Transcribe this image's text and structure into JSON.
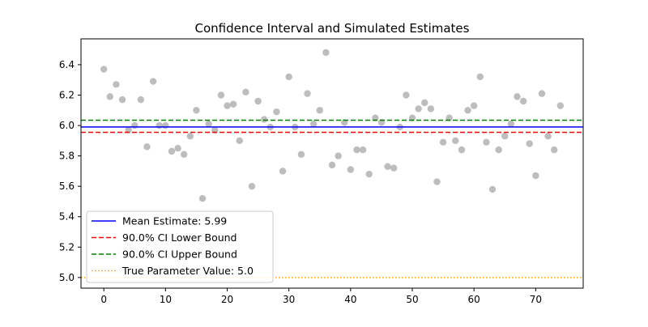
{
  "chart_data": {
    "type": "scatter",
    "title": "Confidence Interval and Simulated Estimates",
    "xlabel": "",
    "ylabel": "",
    "xlim": [
      -3.7,
      77.7
    ],
    "ylim": [
      4.93,
      6.57
    ],
    "xticks": [
      0,
      10,
      20,
      30,
      40,
      50,
      60,
      70
    ],
    "yticks": [
      5.0,
      5.2,
      5.4,
      5.6,
      5.8,
      6.0,
      6.2,
      6.4
    ],
    "ytick_labels": [
      "5.0",
      "5.2",
      "5.4",
      "5.6",
      "5.8",
      "6.0",
      "6.2",
      "6.4"
    ],
    "grid": false,
    "legend_position": "lower-left",
    "colors": {
      "points": "#999999",
      "mean": "#0000ff",
      "ci_lower": "#ff0000",
      "ci_upper": "#008000",
      "true_value": "#ffa500"
    },
    "series": [
      {
        "kind": "points",
        "x": [
          0,
          1,
          2,
          3,
          4,
          5,
          6,
          7,
          8,
          9,
          10,
          11,
          12,
          13,
          14,
          15,
          16,
          17,
          18,
          19,
          20,
          21,
          22,
          23,
          24,
          25,
          26,
          27,
          28,
          29,
          30,
          31,
          32,
          33,
          34,
          35,
          36,
          37,
          38,
          39,
          40,
          41,
          42,
          43,
          44,
          45,
          46,
          47,
          48,
          49,
          50,
          51,
          52,
          53,
          54,
          55,
          56,
          57,
          58,
          59,
          60,
          61,
          62,
          63,
          64,
          65,
          66,
          67,
          68,
          69,
          70,
          71,
          72,
          73,
          74
        ],
        "y": [
          6.37,
          6.19,
          6.27,
          6.17,
          5.97,
          6.0,
          6.17,
          5.86,
          6.29,
          6.0,
          6.0,
          5.83,
          5.85,
          5.81,
          5.93,
          6.1,
          5.52,
          6.01,
          5.97,
          6.2,
          6.13,
          6.14,
          5.9,
          6.22,
          5.6,
          6.16,
          6.04,
          5.99,
          6.09,
          5.7,
          6.32,
          5.99,
          5.81,
          6.21,
          6.01,
          6.1,
          6.48,
          5.74,
          5.8,
          6.02,
          5.71,
          5.84,
          5.84,
          5.68,
          6.05,
          6.02,
          5.73,
          5.72,
          5.99,
          6.2,
          6.05,
          6.11,
          6.15,
          6.11,
          5.63,
          5.89,
          6.05,
          5.9,
          5.84,
          6.1,
          6.13,
          6.32,
          5.89,
          5.58,
          5.84,
          5.93,
          6.01,
          6.19,
          6.16,
          5.88,
          5.67,
          6.21,
          5.93,
          5.84,
          6.13
        ]
      },
      {
        "kind": "hline",
        "name": "Mean Estimate: 5.99",
        "y": 5.99,
        "style": "solid",
        "color_key": "mean"
      },
      {
        "kind": "hline",
        "name": "90.0% CI Lower Bound",
        "y": 5.955,
        "style": "dashed",
        "color_key": "ci_lower"
      },
      {
        "kind": "hline",
        "name": "90.0% CI Upper Bound",
        "y": 6.035,
        "style": "dashed",
        "color_key": "ci_upper"
      },
      {
        "kind": "hline",
        "name": "True Parameter Value: 5.0",
        "y": 5.0,
        "style": "dotted",
        "color_key": "true_value"
      }
    ]
  }
}
